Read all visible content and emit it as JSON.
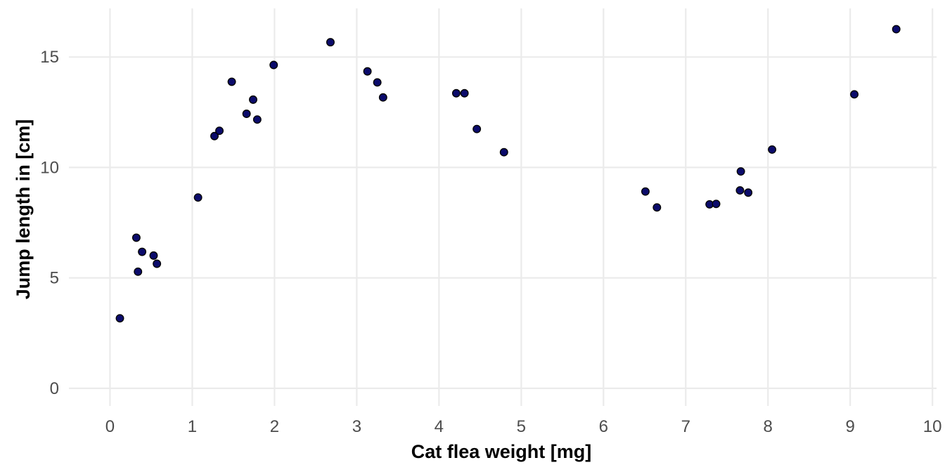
{
  "chart_data": {
    "type": "scatter",
    "title": "",
    "xlabel": "Cat flea weight [mg]",
    "ylabel": "Jump length in [cm]",
    "xlim": [
      -0.5,
      10.05
    ],
    "ylim": [
      -0.8,
      17.2
    ],
    "xticks": [
      0,
      1,
      2,
      3,
      4,
      5,
      6,
      7,
      8,
      9,
      10
    ],
    "yticks": [
      0,
      5,
      10,
      15
    ],
    "grid": true,
    "legend": "none",
    "point_fill": "#0b0b6b",
    "point_stroke": "#000000",
    "grid_color": "#ebebeb",
    "points": [
      {
        "x": 0.12,
        "y": 3.17
      },
      {
        "x": 0.32,
        "y": 6.82
      },
      {
        "x": 0.34,
        "y": 5.28
      },
      {
        "x": 0.39,
        "y": 6.18
      },
      {
        "x": 0.53,
        "y": 6.01
      },
      {
        "x": 0.57,
        "y": 5.64
      },
      {
        "x": 1.07,
        "y": 8.64
      },
      {
        "x": 1.27,
        "y": 11.42
      },
      {
        "x": 1.33,
        "y": 11.66
      },
      {
        "x": 1.48,
        "y": 13.88
      },
      {
        "x": 1.66,
        "y": 12.43
      },
      {
        "x": 1.74,
        "y": 13.07
      },
      {
        "x": 1.79,
        "y": 12.17
      },
      {
        "x": 1.99,
        "y": 14.64
      },
      {
        "x": 2.68,
        "y": 15.67
      },
      {
        "x": 3.13,
        "y": 14.35
      },
      {
        "x": 3.25,
        "y": 13.85
      },
      {
        "x": 3.32,
        "y": 13.17
      },
      {
        "x": 4.21,
        "y": 13.36
      },
      {
        "x": 4.31,
        "y": 13.36
      },
      {
        "x": 4.46,
        "y": 11.74
      },
      {
        "x": 4.79,
        "y": 10.69
      },
      {
        "x": 6.51,
        "y": 8.91
      },
      {
        "x": 6.65,
        "y": 8.19
      },
      {
        "x": 7.29,
        "y": 8.33
      },
      {
        "x": 7.37,
        "y": 8.35
      },
      {
        "x": 7.66,
        "y": 8.96
      },
      {
        "x": 7.67,
        "y": 9.82
      },
      {
        "x": 7.76,
        "y": 8.86
      },
      {
        "x": 8.05,
        "y": 10.81
      },
      {
        "x": 9.05,
        "y": 13.31
      },
      {
        "x": 9.56,
        "y": 16.26
      }
    ]
  }
}
